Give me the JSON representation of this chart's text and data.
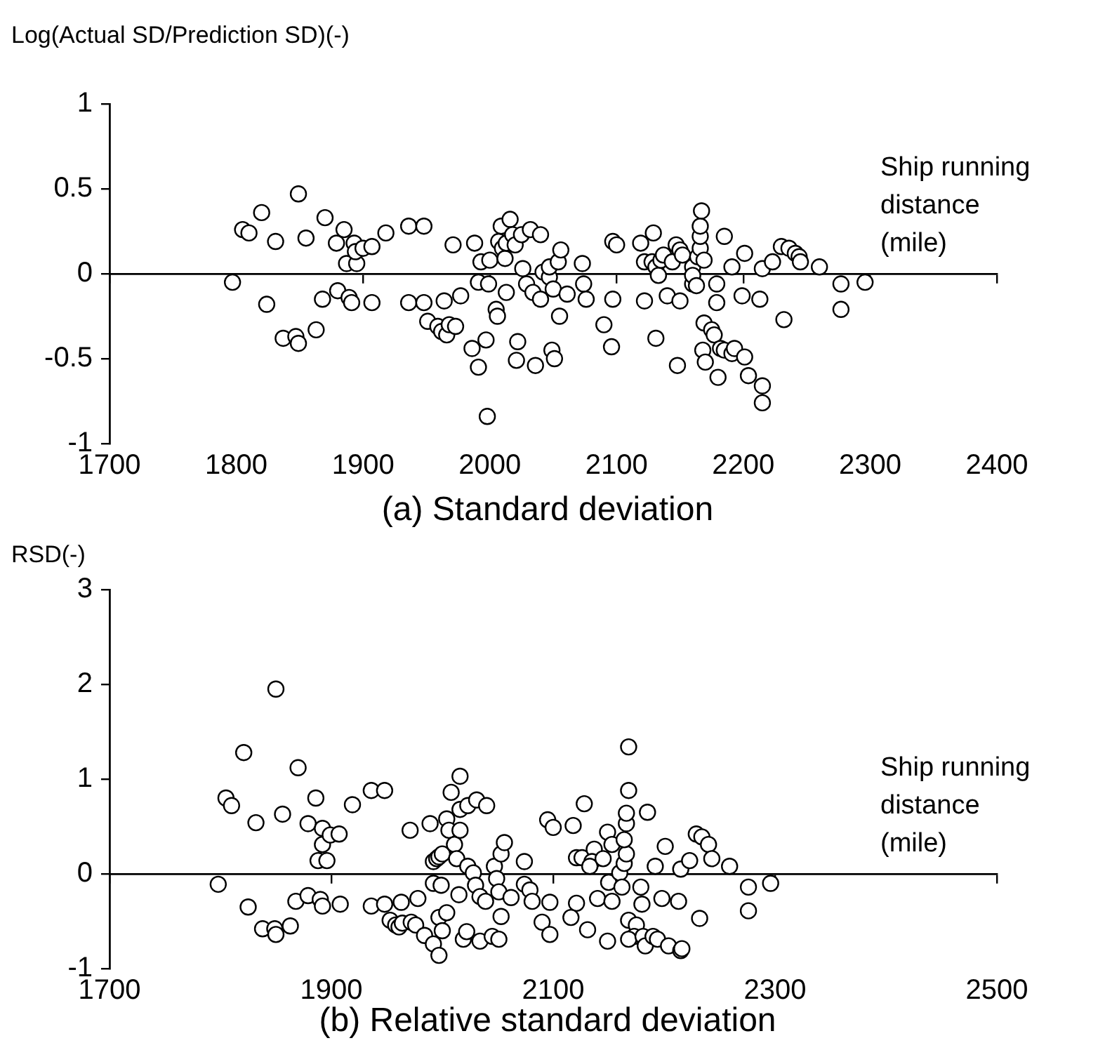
{
  "chart_data": [
    {
      "type": "scatter",
      "title": "(a) Standard deviation",
      "xlabel": "Ship running distance (mile)",
      "ylabel": "Log(Actual SD/Prediction SD)(-)",
      "color": "#000000",
      "marker": "circle",
      "xlim": [
        1700,
        2400
      ],
      "xticks": [
        1700,
        1800,
        1900,
        2000,
        2100,
        2200,
        2300,
        2400
      ],
      "ylim": [
        -1,
        1
      ],
      "yticks": [
        -1,
        -0.5,
        0,
        0.5,
        1
      ],
      "x": [
        1797,
        1805,
        1810,
        1820,
        1831,
        1824,
        1837,
        1847,
        1849,
        1849,
        1855,
        1863,
        1868,
        1870,
        1879,
        1880,
        1885,
        1887,
        1889,
        1891,
        1893,
        1895,
        1894,
        1900,
        1907,
        1907,
        1918,
        1936,
        1936,
        1948,
        1948,
        1951,
        1959,
        1962,
        1964,
        1966,
        1968,
        1971,
        1977,
        1973,
        1986,
        1988,
        1991,
        1993,
        1991,
        1997,
        1998,
        1999,
        2000,
        2005,
        2006,
        2007,
        2009,
        2010,
        2012,
        2013,
        2016,
        2013,
        2018,
        2020,
        2022,
        2021,
        2025,
        2026,
        2029,
        2032,
        2034,
        2036,
        2040,
        2040,
        2042,
        2047,
        2049,
        2051,
        2047,
        2050,
        2054,
        2056,
        2061,
        2055,
        2073,
        2074,
        2076,
        2097,
        2097,
        2100,
        2096,
        2090,
        2119,
        2122,
        2122,
        2129,
        2128,
        2131,
        2133,
        2135,
        2137,
        2131,
        2140,
        2144,
        2147,
        2148,
        2150,
        2150,
        2152,
        2160,
        2160,
        2160,
        2164,
        2166,
        2166,
        2166,
        2167,
        2163,
        2169,
        2169,
        2175,
        2177,
        2168,
        2170,
        2179,
        2179,
        2180,
        2182,
        2185,
        2191,
        2193,
        2185,
        2191,
        2199,
        2201,
        2201,
        2204,
        2213,
        2215,
        2215,
        2215,
        2223,
        2230,
        2236,
        2241,
        2244,
        2245,
        2232,
        2260,
        2277,
        2277,
        2296
      ],
      "values": [
        -0.05,
        0.26,
        0.24,
        0.36,
        0.19,
        -0.18,
        -0.38,
        -0.37,
        -0.41,
        0.47,
        0.21,
        -0.33,
        -0.15,
        0.33,
        0.18,
        -0.1,
        0.26,
        0.06,
        -0.14,
        -0.17,
        0.18,
        0.06,
        0.13,
        0.15,
        0.16,
        -0.17,
        0.24,
        -0.17,
        0.28,
        0.28,
        -0.17,
        -0.28,
        -0.31,
        -0.34,
        -0.16,
        -0.36,
        -0.3,
        0.17,
        -0.13,
        -0.31,
        -0.44,
        0.18,
        -0.55,
        0.07,
        -0.05,
        -0.39,
        -0.84,
        -0.06,
        0.08,
        -0.21,
        -0.25,
        0.19,
        0.28,
        0.15,
        0.09,
        0.18,
        0.32,
        -0.11,
        0.23,
        0.17,
        -0.4,
        -0.51,
        0.23,
        0.03,
        -0.06,
        0.26,
        -0.11,
        -0.54,
        0.23,
        -0.15,
        0.01,
        -0.02,
        -0.45,
        -0.5,
        0.04,
        -0.09,
        0.07,
        0.14,
        -0.12,
        -0.25,
        0.06,
        -0.06,
        -0.15,
        -0.15,
        0.19,
        0.17,
        -0.43,
        -0.3,
        0.18,
        -0.16,
        0.07,
        0.24,
        0.07,
        0.04,
        -0.01,
        0.08,
        0.11,
        -0.38,
        -0.13,
        0.07,
        0.17,
        -0.54,
        -0.16,
        0.14,
        0.11,
        -0.06,
        0.04,
        -0.01,
        0.1,
        0.15,
        0.22,
        0.28,
        0.37,
        -0.07,
        0.08,
        -0.29,
        -0.33,
        -0.36,
        -0.45,
        -0.52,
        -0.06,
        -0.17,
        -0.61,
        -0.44,
        -0.45,
        -0.47,
        -0.44,
        0.22,
        0.04,
        -0.13,
        0.12,
        -0.49,
        -0.6,
        -0.15,
        0.03,
        -0.66,
        -0.76,
        0.07,
        0.16,
        0.15,
        0.12,
        0.1,
        0.07,
        -0.27,
        0.04,
        -0.06,
        -0.21,
        -0.05
      ]
    },
    {
      "type": "scatter",
      "title": "(b) Relative standard deviation",
      "xlabel": "Ship running distance (mile)",
      "ylabel": "RSD(-)",
      "color": "#000000",
      "marker": "circle",
      "xlim": [
        1700,
        2500
      ],
      "xticks": [
        1700,
        1900,
        2100,
        2300,
        2500
      ],
      "ylim": [
        -1,
        3
      ],
      "yticks": [
        -1,
        0,
        1,
        2,
        3
      ],
      "x": [
        1798,
        1805,
        1810,
        1821,
        1825,
        1832,
        1838,
        1849,
        1850,
        1850,
        1856,
        1863,
        1868,
        1870,
        1879,
        1879,
        1886,
        1888,
        1890,
        1892,
        1892,
        1892,
        1896,
        1899,
        1907,
        1908,
        1919,
        1936,
        1936,
        1948,
        1948,
        1953,
        1958,
        1961,
        1964,
        1963,
        1971,
        1972,
        1976,
        1978,
        1984,
        1989,
        1992,
        1995,
        1997,
        1992,
        1992,
        1997,
        1999,
        1997,
        2000,
        2004,
        2000,
        2004,
        2006,
        2008,
        2011,
        2013,
        2016,
        2016,
        2016,
        2015,
        2023,
        2031,
        2040,
        2019,
        2022,
        2023,
        2028,
        2030,
        2034,
        2039,
        2034,
        2045,
        2051,
        2047,
        2049,
        2051,
        2053,
        2056,
        2053,
        2062,
        2074,
        2074,
        2079,
        2081,
        2095,
        2100,
        2097,
        2090,
        2097,
        2118,
        2121,
        2126,
        2128,
        2121,
        2116,
        2131,
        2137,
        2135,
        2133,
        2140,
        2145,
        2149,
        2150,
        2153,
        2153,
        2149,
        2160,
        2162,
        2164,
        2166,
        2164,
        2166,
        2166,
        2168,
        2168,
        2168,
        2175,
        2173,
        2168,
        2179,
        2180,
        2181,
        2183,
        2190,
        2194,
        2185,
        2192,
        2198,
        2201,
        2204,
        2215,
        2216,
        2213,
        2215,
        2223,
        2229,
        2234,
        2240,
        2243,
        2232,
        2259,
        2276,
        2276,
        2296
      ],
      "values": [
        -0.11,
        0.8,
        0.72,
        1.28,
        -0.35,
        0.54,
        -0.58,
        -0.58,
        -0.64,
        1.95,
        0.63,
        -0.55,
        -0.29,
        1.12,
        0.53,
        -0.23,
        0.8,
        0.14,
        -0.27,
        0.48,
        0.31,
        -0.34,
        0.14,
        0.41,
        0.42,
        -0.32,
        0.73,
        0.88,
        -0.34,
        0.88,
        -0.32,
        -0.49,
        -0.54,
        -0.56,
        -0.52,
        -0.3,
        0.46,
        -0.51,
        -0.54,
        -0.26,
        -0.65,
        0.53,
        0.13,
        0.16,
        0.18,
        -0.74,
        -0.1,
        -0.86,
        -0.12,
        -0.46,
        -0.6,
        -0.41,
        0.21,
        0.58,
        0.46,
        0.86,
        0.31,
        0.16,
        0.46,
        0.68,
        1.03,
        -0.22,
        0.72,
        0.78,
        0.72,
        -0.69,
        -0.61,
        0.08,
        0.01,
        -0.12,
        -0.24,
        -0.29,
        -0.71,
        -0.66,
        -0.69,
        0.08,
        -0.05,
        -0.19,
        0.21,
        0.33,
        -0.45,
        -0.25,
        0.13,
        -0.11,
        -0.17,
        -0.29,
        0.57,
        0.49,
        -0.3,
        -0.51,
        -0.64,
        0.51,
        0.17,
        0.17,
        0.74,
        -0.31,
        -0.46,
        -0.59,
        0.26,
        0.13,
        0.08,
        -0.26,
        0.16,
        0.44,
        -0.09,
        0.31,
        -0.29,
        -0.71,
        0.01,
        -0.14,
        0.11,
        0.21,
        0.36,
        0.53,
        0.64,
        0.88,
        1.34,
        -0.49,
        -0.54,
        -0.66,
        -0.69,
        -0.14,
        -0.32,
        -0.66,
        -0.76,
        -0.66,
        -0.69,
        0.65,
        0.08,
        -0.26,
        0.29,
        -0.76,
        -0.81,
        -0.79,
        -0.29,
        0.05,
        0.14,
        0.42,
        0.39,
        0.31,
        0.16,
        -0.47,
        0.08,
        -0.14,
        -0.39,
        -0.1
      ]
    }
  ]
}
